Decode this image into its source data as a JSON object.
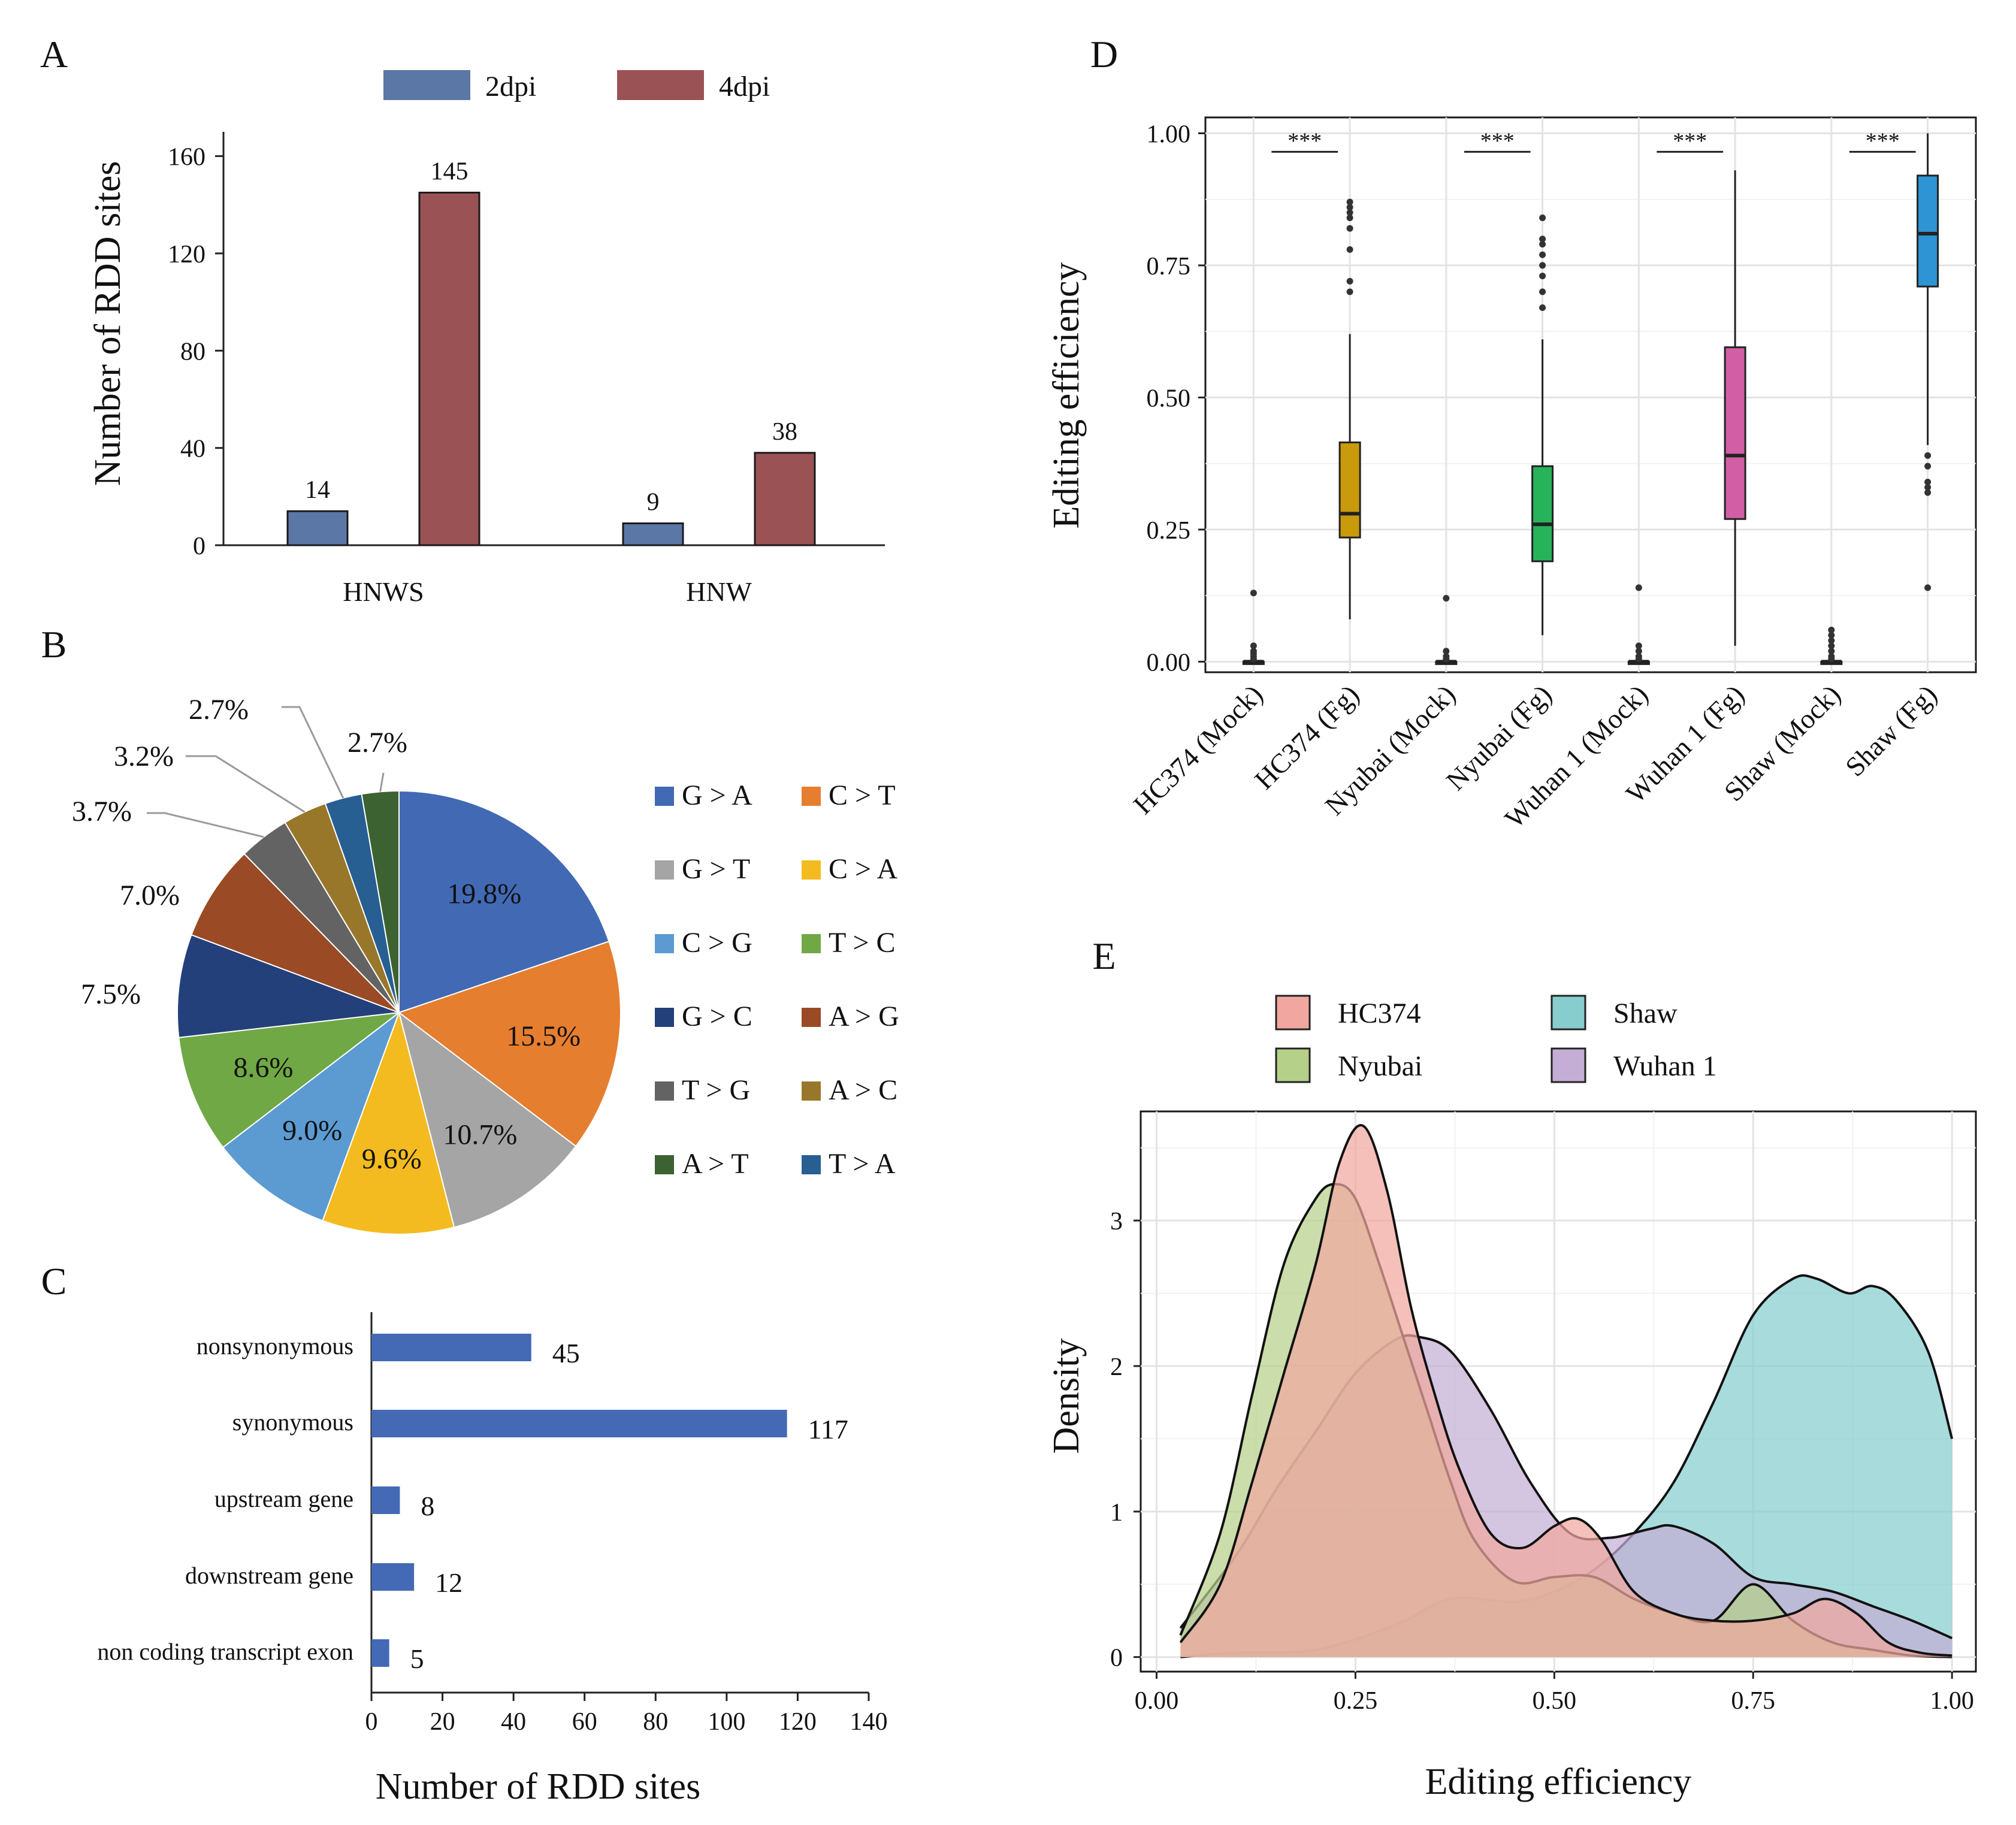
{
  "colors": {
    "a_2dpi": "#5b77a5",
    "a_4dpi": "#9b5255",
    "b_slices": [
      "#4269b3",
      "#e67e30",
      "#a5a5a5",
      "#f3bb1f",
      "#5b9bd1",
      "#70a845",
      "#23407a",
      "#9a4a24",
      "#636363",
      "#98772a",
      "#275f92",
      "#3c6231"
    ],
    "c_bar": "#4469b5",
    "d_fg": [
      "#c89a0c",
      "#27b35a",
      "#d15fa6",
      "#2e94d3"
    ],
    "e_HC374": "#f1a79f",
    "e_Nyubai": "#b5d089",
    "e_Shaw": "#87cdcd",
    "e_Wuhan1": "#c4aed6"
  },
  "chart_data": [
    {
      "panel": "A",
      "type": "bar",
      "title": "",
      "categories": [
        "HNWS",
        "HNW"
      ],
      "series": [
        {
          "name": "2dpi",
          "values": [
            14,
            9
          ]
        },
        {
          "name": "4dpi",
          "values": [
            145,
            38
          ]
        }
      ],
      "data_labels": [
        "14",
        "145",
        "9",
        "38"
      ],
      "xlabel": "",
      "ylabel": "Number of RDD sites",
      "ylim": [
        0,
        170
      ],
      "yticks": [
        "0",
        "40",
        "80",
        "120",
        "160"
      ],
      "legend": "top"
    },
    {
      "panel": "B",
      "type": "pie",
      "labels": [
        "G > A",
        "C > T",
        "G > T",
        "C > A",
        "C > G",
        "T > C",
        "G > C",
        "A > G",
        "T > G",
        "A > C",
        "T > A",
        "A > T"
      ],
      "slice_order": [
        "G > A",
        "C > T",
        "G > T",
        "C > A",
        "C > G",
        "T > C",
        "G > C",
        "A > G",
        "T > G",
        "A > C",
        "T > A",
        "A > T"
      ],
      "values": [
        19.8,
        15.5,
        10.7,
        9.6,
        9.0,
        8.6,
        7.5,
        7.0,
        3.7,
        3.2,
        2.7,
        2.7
      ],
      "pct_labels": [
        "19.8%",
        "15.5%",
        "10.7%",
        "9.6%",
        "9.0%",
        "8.6%",
        "7.5%",
        "7.0%",
        "3.7%",
        "3.2%",
        "2.7%",
        "2.7%"
      ],
      "legend_order": [
        "G > A",
        "C > T",
        "G > T",
        "C > A",
        "C > G",
        "T > C",
        "G > C",
        "A > G",
        "T > G",
        "A > C",
        "A > T",
        "T > A"
      ],
      "legend": "right"
    },
    {
      "panel": "C",
      "type": "bar",
      "orientation": "horizontal",
      "categories": [
        "nonsynonymous",
        "synonymous",
        "upstream gene",
        "downstream gene",
        "non coding transcript exon"
      ],
      "values": [
        45,
        117,
        8,
        12,
        5
      ],
      "data_labels": [
        "45",
        "117",
        "8",
        "12",
        "5"
      ],
      "xlabel": "Number of RDD sites",
      "xlim": [
        0,
        140
      ],
      "xticks": [
        "0",
        "20",
        "40",
        "60",
        "80",
        "100",
        "120",
        "140"
      ]
    },
    {
      "panel": "D",
      "type": "box",
      "categories": [
        "HC374 (Mock)",
        "HC374 (Fg)",
        "Nyubai (Mock)",
        "Nyubai (Fg)",
        "Wuhan 1 (Mock)",
        "Wuhan 1 (Fg)",
        "Shaw (Mock)",
        "Shaw (Fg)"
      ],
      "boxes": [
        {
          "min": 0.0,
          "q1": 0.0,
          "median": 0.0,
          "q3": 0.0,
          "max": 0.0,
          "outliers": [
            0.005,
            0.01,
            0.015,
            0.02,
            0.03,
            0.13
          ]
        },
        {
          "min": 0.08,
          "q1": 0.235,
          "median": 0.28,
          "q3": 0.415,
          "max": 0.62,
          "outliers": [
            0.7,
            0.72,
            0.78,
            0.82,
            0.84,
            0.85,
            0.86,
            0.87
          ]
        },
        {
          "min": 0.0,
          "q1": 0.0,
          "median": 0.0,
          "q3": 0.0,
          "max": 0.0,
          "outliers": [
            0.005,
            0.01,
            0.02,
            0.12
          ]
        },
        {
          "min": 0.05,
          "q1": 0.19,
          "median": 0.26,
          "q3": 0.37,
          "max": 0.61,
          "outliers": [
            0.67,
            0.7,
            0.73,
            0.75,
            0.77,
            0.79,
            0.8,
            0.84
          ]
        },
        {
          "min": 0.0,
          "q1": 0.0,
          "median": 0.0,
          "q3": 0.0,
          "max": 0.0,
          "outliers": [
            0.005,
            0.01,
            0.02,
            0.03,
            0.14
          ]
        },
        {
          "min": 0.03,
          "q1": 0.27,
          "median": 0.39,
          "q3": 0.595,
          "max": 0.93,
          "outliers": []
        },
        {
          "min": 0.0,
          "q1": 0.0,
          "median": 0.0,
          "q3": 0.0,
          "max": 0.0,
          "outliers": [
            0.005,
            0.01,
            0.02,
            0.03,
            0.04,
            0.05,
            0.06
          ]
        },
        {
          "min": 0.41,
          "q1": 0.71,
          "median": 0.81,
          "q3": 0.92,
          "max": 1.0,
          "outliers": [
            0.14,
            0.32,
            0.33,
            0.34,
            0.37,
            0.39
          ]
        }
      ],
      "significance": [
        "***",
        "***",
        "***",
        "***"
      ],
      "xlabel": "",
      "ylabel": "Editing efficiency",
      "ylim": [
        -0.02,
        1.03
      ],
      "yticks": [
        "0.00",
        "0.25",
        "0.50",
        "0.75",
        "1.00"
      ],
      "grid": true
    },
    {
      "panel": "E",
      "type": "area",
      "subtype": "density",
      "xlabel": "Editing efficiency",
      "ylabel": "Density",
      "xlim": [
        -0.02,
        1.03
      ],
      "ylim": [
        -0.1,
        3.75
      ],
      "xticks": [
        "0.00",
        "0.25",
        "0.50",
        "0.75",
        "1.00"
      ],
      "yticks": [
        "0",
        "1",
        "2",
        "3"
      ],
      "legend_order": [
        "HC374",
        "Shaw",
        "Nyubai",
        "Wuhan 1"
      ],
      "legend": "top",
      "grid": true,
      "series": [
        {
          "name": "Shaw",
          "x": [
            0.03,
            0.1,
            0.2,
            0.3,
            0.37,
            0.45,
            0.5,
            0.55,
            0.6,
            0.65,
            0.7,
            0.75,
            0.8,
            0.83,
            0.87,
            0.9,
            0.93,
            0.97,
            1.0
          ],
          "y": [
            0.0,
            0.03,
            0.05,
            0.22,
            0.4,
            0.38,
            0.45,
            0.6,
            0.85,
            1.2,
            1.75,
            2.35,
            2.6,
            2.6,
            2.5,
            2.55,
            2.45,
            2.1,
            1.5
          ]
        },
        {
          "name": "Wuhan 1",
          "x": [
            0.03,
            0.1,
            0.15,
            0.2,
            0.25,
            0.3,
            0.33,
            0.37,
            0.42,
            0.47,
            0.52,
            0.57,
            0.62,
            0.65,
            0.7,
            0.75,
            0.8,
            0.85,
            0.9,
            0.95,
            1.0
          ],
          "y": [
            0.2,
            0.7,
            1.15,
            1.55,
            1.95,
            2.18,
            2.2,
            2.1,
            1.7,
            1.2,
            0.85,
            0.82,
            0.88,
            0.9,
            0.78,
            0.55,
            0.5,
            0.45,
            0.35,
            0.25,
            0.13
          ]
        },
        {
          "name": "Nyubai",
          "x": [
            0.03,
            0.08,
            0.12,
            0.16,
            0.2,
            0.225,
            0.25,
            0.28,
            0.31,
            0.34,
            0.37,
            0.4,
            0.45,
            0.5,
            0.55,
            0.6,
            0.65,
            0.7,
            0.75,
            0.8,
            0.85,
            0.9,
            0.95,
            1.0
          ],
          "y": [
            0.15,
            0.85,
            1.8,
            2.7,
            3.15,
            3.25,
            3.15,
            2.7,
            2.2,
            1.7,
            1.2,
            0.8,
            0.52,
            0.55,
            0.55,
            0.4,
            0.3,
            0.25,
            0.5,
            0.25,
            0.1,
            0.05,
            0.01,
            0.0
          ]
        },
        {
          "name": "HC374",
          "x": [
            0.03,
            0.08,
            0.12,
            0.16,
            0.2,
            0.23,
            0.26,
            0.29,
            0.32,
            0.35,
            0.38,
            0.42,
            0.46,
            0.5,
            0.53,
            0.56,
            0.6,
            0.65,
            0.7,
            0.75,
            0.8,
            0.84,
            0.88,
            0.92,
            0.96,
            1.0
          ],
          "y": [
            0.1,
            0.5,
            1.2,
            1.95,
            2.7,
            3.4,
            3.65,
            3.2,
            2.4,
            1.8,
            1.3,
            0.85,
            0.75,
            0.9,
            0.95,
            0.8,
            0.45,
            0.3,
            0.25,
            0.25,
            0.3,
            0.4,
            0.3,
            0.1,
            0.03,
            0.01
          ]
        }
      ]
    }
  ],
  "labels": {
    "panel_letters": [
      "A",
      "B",
      "C",
      "D",
      "E"
    ],
    "a_legend": [
      "2dpi",
      "4dpi"
    ],
    "e_legend": [
      "HC374",
      "Shaw",
      "Nyubai",
      "Wuhan 1"
    ]
  }
}
